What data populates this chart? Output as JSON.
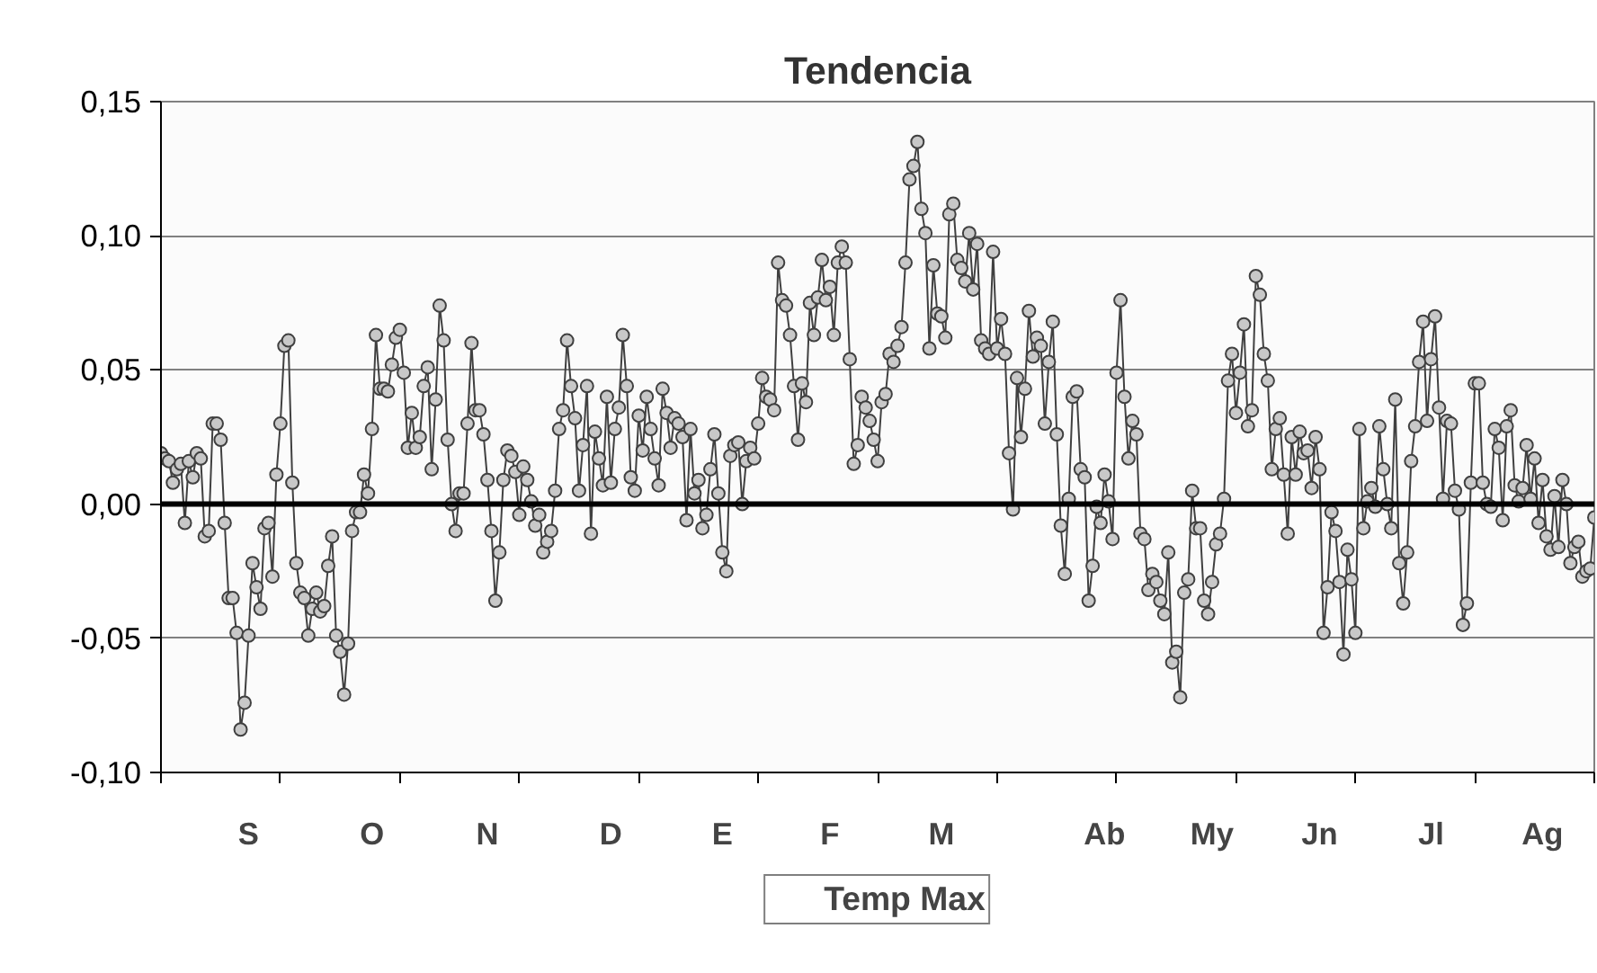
{
  "chart_data": {
    "type": "line",
    "title": "Tendencia",
    "marker": "circle",
    "grid": "y",
    "legend": "bottom",
    "categories": [
      null,
      null,
      null,
      null,
      null,
      null,
      null,
      null,
      null,
      null,
      null,
      null,
      null,
      null,
      null,
      null,
      null,
      null,
      null,
      null,
      null,
      null,
      "S",
      null,
      null,
      null,
      null,
      null,
      null,
      null,
      null,
      null,
      null,
      null,
      null,
      null,
      null,
      null,
      null,
      null,
      null,
      null,
      null,
      null,
      null,
      null,
      null,
      null,
      null,
      null,
      null,
      null,
      null,
      "O",
      null,
      null,
      null,
      null,
      null,
      null,
      null,
      null,
      null,
      null,
      null,
      null,
      null,
      null,
      null,
      null,
      null,
      null,
      null,
      null,
      null,
      null,
      null,
      null,
      null,
      null,
      null,
      null,
      "N",
      null,
      null,
      null,
      null,
      null,
      null,
      null,
      null,
      null,
      null,
      null,
      null,
      null,
      null,
      null,
      null,
      null,
      null,
      null,
      null,
      null,
      null,
      null,
      null,
      null,
      null,
      null,
      null,
      null,
      null,
      "D",
      null,
      null,
      null,
      null,
      null,
      null,
      null,
      null,
      null,
      null,
      null,
      null,
      null,
      null,
      null,
      null,
      null,
      null,
      null,
      null,
      null,
      null,
      null,
      null,
      null,
      null,
      null,
      "E",
      null,
      null,
      null,
      null,
      null,
      null,
      null,
      null,
      null,
      null,
      null,
      null,
      null,
      null,
      null,
      null,
      null,
      null,
      null,
      null,
      null,
      null,
      null,
      null,
      null,
      null,
      "F",
      null,
      null,
      null,
      null,
      null,
      null,
      null,
      null,
      null,
      null,
      null,
      null,
      null,
      null,
      null,
      null,
      null,
      null,
      null,
      null,
      null,
      null,
      null,
      null,
      null,
      null,
      null,
      "M",
      null,
      null,
      null,
      null,
      null,
      null,
      null,
      null,
      null,
      null,
      null,
      null,
      null,
      null,
      null,
      null,
      null,
      null,
      null,
      null,
      null,
      null,
      null,
      null,
      null,
      null,
      null,
      null,
      null,
      null,
      null,
      null,
      null,
      null,
      null,
      null,
      null,
      null,
      null,
      null,
      "Ab",
      null,
      null,
      null,
      null,
      null,
      null,
      null,
      null,
      null,
      null,
      null,
      null,
      null,
      null,
      null,
      null,
      null,
      null,
      null,
      null,
      null,
      null,
      null,
      null,
      null,
      null,
      "My",
      null,
      null,
      null,
      null,
      null,
      null,
      null,
      null,
      null,
      null,
      null,
      null,
      null,
      null,
      null,
      null,
      null,
      null,
      null,
      null,
      null,
      null,
      null,
      null,
      null,
      null,
      "Jn",
      null,
      null,
      null,
      null,
      null,
      null,
      null,
      null,
      null,
      null,
      null,
      null,
      null,
      null,
      null,
      null,
      null,
      null,
      null,
      null,
      null,
      null,
      null,
      null,
      null,
      null,
      null,
      "Jl",
      null,
      null,
      null,
      null,
      null,
      null,
      null,
      null,
      null,
      null,
      null,
      null,
      null,
      null,
      null,
      null,
      null,
      null,
      null,
      null,
      null,
      null,
      null,
      null,
      null,
      null,
      null,
      "Ag",
      null,
      null,
      null,
      null,
      null,
      null,
      null,
      null,
      null,
      null,
      null,
      null,
      null
    ],
    "ylim": [
      -0.1,
      0.15
    ],
    "yticks": [
      {
        "value": -0.1,
        "label": "-0,10"
      },
      {
        "value": -0.05,
        "label": "-0,05"
      },
      {
        "value": 0,
        "label": "0,00"
      },
      {
        "value": 0.05,
        "label": "0,05"
      },
      {
        "value": 0.1,
        "label": "0,10"
      },
      {
        "value": 0.15,
        "label": "0,15"
      }
    ],
    "ref_lines": [
      {
        "axis": "y",
        "value": 0,
        "color": "#000000"
      }
    ],
    "series": [
      {
        "name": "Temp Max",
        "color": "#404040",
        "values": [
          0.019,
          0.017,
          0.016,
          0.008,
          0.013,
          0.015,
          -0.007,
          0.016,
          0.01,
          0.019,
          0.017,
          -0.012,
          -0.01,
          0.03,
          0.03,
          0.024,
          -0.007,
          -0.035,
          -0.035,
          -0.048,
          -0.084,
          -0.074,
          -0.049,
          -0.022,
          -0.031,
          -0.039,
          -0.009,
          -0.007,
          -0.027,
          0.011,
          0.03,
          0.059,
          0.061,
          0.008,
          -0.022,
          -0.033,
          -0.035,
          -0.049,
          -0.039,
          -0.033,
          -0.04,
          -0.038,
          -0.023,
          -0.012,
          -0.049,
          -0.055,
          -0.071,
          -0.052,
          -0.01,
          -0.003,
          -0.003,
          0.011,
          0.004,
          0.028,
          0.063,
          0.043,
          0.043,
          0.042,
          0.052,
          0.062,
          0.065,
          0.049,
          0.021,
          0.034,
          0.021,
          0.025,
          0.044,
          0.051,
          0.013,
          0.039,
          0.074,
          0.061,
          0.024,
          0.0,
          -0.01,
          0.004,
          0.004,
          0.03,
          0.06,
          0.035,
          0.035,
          0.026,
          0.009,
          -0.01,
          -0.036,
          -0.018,
          0.009,
          0.02,
          0.018,
          0.012,
          -0.004,
          0.014,
          0.009,
          0.001,
          -0.008,
          -0.004,
          -0.018,
          -0.014,
          -0.01,
          0.005,
          0.028,
          0.035,
          0.061,
          0.044,
          0.032,
          0.005,
          0.022,
          0.044,
          -0.011,
          0.027,
          0.017,
          0.007,
          0.04,
          0.008,
          0.028,
          0.036,
          0.063,
          0.044,
          0.01,
          0.005,
          0.033,
          0.02,
          0.04,
          0.028,
          0.017,
          0.007,
          0.043,
          0.034,
          0.021,
          0.032,
          0.03,
          0.025,
          -0.006,
          0.028,
          0.004,
          0.009,
          -0.009,
          -0.004,
          0.013,
          0.026,
          0.004,
          -0.018,
          -0.025,
          0.018,
          0.022,
          0.023,
          0.0,
          0.016,
          0.021,
          0.017,
          0.03,
          0.047,
          0.04,
          0.039,
          0.035,
          0.09,
          0.076,
          0.074,
          0.063,
          0.044,
          0.024,
          0.045,
          0.038,
          0.075,
          0.063,
          0.077,
          0.091,
          0.076,
          0.081,
          0.063,
          0.09,
          0.096,
          0.09,
          0.054,
          0.015,
          0.022,
          0.04,
          0.036,
          0.031,
          0.024,
          0.016,
          0.038,
          0.041,
          0.056,
          0.053,
          0.059,
          0.066,
          0.09,
          0.121,
          0.126,
          0.135,
          0.11,
          0.101,
          0.058,
          0.089,
          0.071,
          0.07,
          0.062,
          0.108,
          0.112,
          0.091,
          0.088,
          0.083,
          0.101,
          0.08,
          0.097,
          0.061,
          0.058,
          0.056,
          0.094,
          0.058,
          0.069,
          0.056,
          0.019,
          -0.002,
          0.047,
          0.025,
          0.043,
          0.072,
          0.055,
          0.062,
          0.059,
          0.03,
          0.053,
          0.068,
          0.026,
          -0.008,
          -0.026,
          0.002,
          0.04,
          0.042,
          0.013,
          0.01,
          -0.036,
          -0.023,
          -0.001,
          -0.007,
          0.011,
          0.001,
          -0.013,
          0.049,
          0.076,
          0.04,
          0.017,
          0.031,
          0.026,
          -0.011,
          -0.013,
          -0.032,
          -0.026,
          -0.029,
          -0.036,
          -0.041,
          -0.018,
          -0.059,
          -0.055,
          -0.072,
          -0.033,
          -0.028,
          0.005,
          -0.009,
          -0.009,
          -0.036,
          -0.041,
          -0.029,
          -0.015,
          -0.011,
          0.002,
          0.046,
          0.056,
          0.034,
          0.049,
          0.067,
          0.029,
          0.035,
          0.085,
          0.078,
          0.056,
          0.046,
          0.013,
          0.028,
          0.032,
          0.011,
          -0.011,
          0.025,
          0.011,
          0.027,
          0.019,
          0.02,
          0.006,
          0.025,
          0.013,
          -0.048,
          -0.031,
          -0.003,
          -0.01,
          -0.029,
          -0.056,
          -0.017,
          -0.028,
          -0.048,
          0.028,
          -0.009,
          0.001,
          0.006,
          -0.001,
          0.029,
          0.013,
          0.0,
          -0.009,
          0.039,
          -0.022,
          -0.037,
          -0.018,
          0.016,
          0.029,
          0.053,
          0.068,
          0.031,
          0.054,
          0.07,
          0.036,
          0.002,
          0.031,
          0.03,
          0.005,
          -0.002,
          -0.045,
          -0.037,
          0.008,
          0.045,
          0.045,
          0.008,
          0.0,
          -0.001,
          0.028,
          0.021,
          -0.006,
          0.029,
          0.035,
          0.007,
          0.001,
          0.006,
          0.022,
          0.002,
          0.017,
          -0.007,
          0.009,
          -0.012,
          -0.017,
          0.003,
          -0.016,
          0.009,
          0.0,
          -0.022,
          -0.016,
          -0.014,
          -0.027,
          -0.025,
          -0.024,
          -0.005
        ]
      }
    ]
  }
}
